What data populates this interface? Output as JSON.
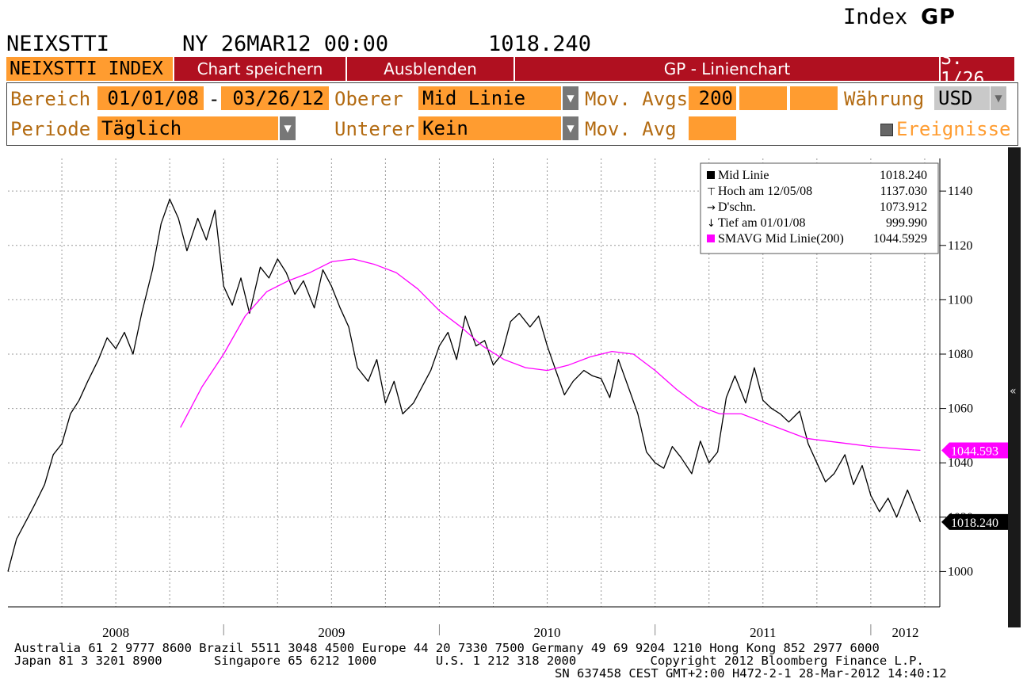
{
  "header": {
    "index_label": "Index",
    "brand": "GP",
    "ticker": "NEIXSTTI",
    "date": "NY 26MAR12 00:00",
    "value": "1018.240"
  },
  "toolbar": {
    "index_field": "NEIXSTTI INDEX",
    "save_chart": "Chart speichern",
    "hide": "Ausblenden",
    "chart_type": "GP - Linienchart",
    "page": "S. 1/26"
  },
  "settings": {
    "range_label": "Bereich",
    "range_start": "01/01/08",
    "range_sep": "-",
    "range_end": "03/26/12",
    "upper_label": "Oberer",
    "upper_value": "Mid Linie",
    "mov_avgs_label": "Mov. Avgs",
    "mov_avgs_value": "200",
    "currency_label": "Währung",
    "currency_value": "USD",
    "period_label": "Periode",
    "period_value": "Täglich",
    "lower_label": "Unterer",
    "lower_value": "Kein",
    "mov_avg_label": "Mov. Avg",
    "events_label": "Ereignisse"
  },
  "colors": {
    "orange": "#ff9c30",
    "red_bar": "#b01020",
    "label_brown": "#b36b12",
    "sma": "#ff00ff",
    "price": "#000000"
  },
  "chart_data": {
    "type": "line",
    "x_labels": [
      "2008",
      "2009",
      "2010",
      "2011",
      "2012"
    ],
    "yticks": [
      1000,
      1020,
      1040,
      1060,
      1080,
      1100,
      1120,
      1140
    ],
    "ylim": [
      987,
      1152
    ],
    "grid": true,
    "legend_position": "top-right",
    "legend": [
      {
        "symbol": "■",
        "label": "Mid Linie",
        "value": "1018.240"
      },
      {
        "symbol": "⊤",
        "label": "Hoch am 12/05/08",
        "value": "1137.030"
      },
      {
        "symbol": "→",
        "label": "D'schn.",
        "value": "1073.912"
      },
      {
        "symbol": "↓",
        "label": "Tief am 01/01/08",
        "value": "999.990"
      },
      {
        "symbol": "■",
        "label": "SMAVG Mid Linie(200)",
        "value": "1044.5929"
      }
    ],
    "sma_tag": "1044.593",
    "last_tag": "1018.240",
    "series": [
      {
        "name": "Mid Linie",
        "color": "#000000",
        "x": [
          2008.0,
          2008.04,
          2008.08,
          2008.12,
          2008.17,
          2008.21,
          2008.25,
          2008.29,
          2008.33,
          2008.37,
          2008.42,
          2008.46,
          2008.5,
          2008.54,
          2008.58,
          2008.62,
          2008.67,
          2008.71,
          2008.75,
          2008.79,
          2008.83,
          2008.88,
          2008.92,
          2008.96,
          2009.0,
          2009.04,
          2009.08,
          2009.12,
          2009.17,
          2009.21,
          2009.25,
          2009.29,
          2009.33,
          2009.37,
          2009.42,
          2009.46,
          2009.5,
          2009.54,
          2009.58,
          2009.62,
          2009.67,
          2009.71,
          2009.75,
          2009.79,
          2009.83,
          2009.88,
          2009.92,
          2009.96,
          2010.0,
          2010.04,
          2010.08,
          2010.12,
          2010.17,
          2010.21,
          2010.25,
          2010.29,
          2010.33,
          2010.37,
          2010.42,
          2010.46,
          2010.5,
          2010.54,
          2010.58,
          2010.62,
          2010.67,
          2010.71,
          2010.75,
          2010.79,
          2010.83,
          2010.88,
          2010.92,
          2010.96,
          2011.0,
          2011.04,
          2011.08,
          2011.12,
          2011.17,
          2011.21,
          2011.25,
          2011.29,
          2011.33,
          2011.37,
          2011.42,
          2011.46,
          2011.5,
          2011.54,
          2011.58,
          2011.62,
          2011.67,
          2011.71,
          2011.75,
          2011.79,
          2011.83,
          2011.88,
          2011.92,
          2011.96,
          2012.0,
          2012.04,
          2012.08,
          2012.12,
          2012.17,
          2012.23
        ],
        "values": [
          999.99,
          1012,
          1018,
          1024,
          1032,
          1043,
          1047,
          1058,
          1063,
          1070,
          1078,
          1086,
          1082,
          1088,
          1080,
          1095,
          1111,
          1128,
          1137.03,
          1130,
          1118,
          1130,
          1122,
          1133,
          1105,
          1098,
          1108,
          1095,
          1112,
          1108,
          1115,
          1110,
          1102,
          1107,
          1097,
          1111,
          1105,
          1097,
          1090,
          1075,
          1070,
          1078,
          1062,
          1070,
          1058,
          1062,
          1068,
          1074,
          1083,
          1088,
          1078,
          1094,
          1083,
          1085,
          1076,
          1080,
          1092,
          1095,
          1090,
          1094,
          1083,
          1074,
          1065,
          1070,
          1074,
          1072,
          1071,
          1064,
          1078,
          1067,
          1058,
          1044,
          1040,
          1038,
          1046,
          1042,
          1036,
          1048,
          1040,
          1044,
          1064,
          1072,
          1062,
          1075,
          1063,
          1060,
          1058,
          1055,
          1059,
          1047,
          1040,
          1033,
          1036,
          1043,
          1032,
          1039,
          1028,
          1022,
          1027,
          1020,
          1030,
          1018.24
        ]
      },
      {
        "name": "SMAVG Mid Linie(200)",
        "color": "#ff00ff",
        "x": [
          2008.8,
          2008.9,
          2009.0,
          2009.1,
          2009.2,
          2009.3,
          2009.4,
          2009.5,
          2009.6,
          2009.7,
          2009.8,
          2009.9,
          2010.0,
          2010.1,
          2010.2,
          2010.3,
          2010.4,
          2010.5,
          2010.6,
          2010.7,
          2010.8,
          2010.9,
          2011.0,
          2011.1,
          2011.2,
          2011.3,
          2011.4,
          2011.5,
          2011.6,
          2011.7,
          2011.8,
          2011.9,
          2012.0,
          2012.1,
          2012.17,
          2012.23
        ],
        "values": [
          1053,
          1068,
          1080,
          1094,
          1103,
          1107,
          1110,
          1114,
          1115,
          1113,
          1110,
          1104,
          1096,
          1090,
          1083,
          1078,
          1075,
          1074,
          1076,
          1079,
          1081,
          1080,
          1074,
          1067,
          1061,
          1058,
          1058,
          1055,
          1052,
          1049,
          1048,
          1047,
          1046,
          1045.3,
          1044.9,
          1044.59
        ]
      }
    ]
  },
  "footer": {
    "line1": "Australia 61 2 9777 8600 Brazil 5511 3048 4500 Europe 44 20 7330 7500 Germany 49 69 9204 1210 Hong Kong 852 2977 6000",
    "line2": "Japan 81 3 3201 8900       Singapore 65 6212 1000        U.S. 1 212 318 2000          Copyright 2012 Bloomberg Finance L.P.",
    "line3": "SN 637458 CEST GMT+2:00 H472-2-1 28-Mar-2012 14:40:12"
  }
}
